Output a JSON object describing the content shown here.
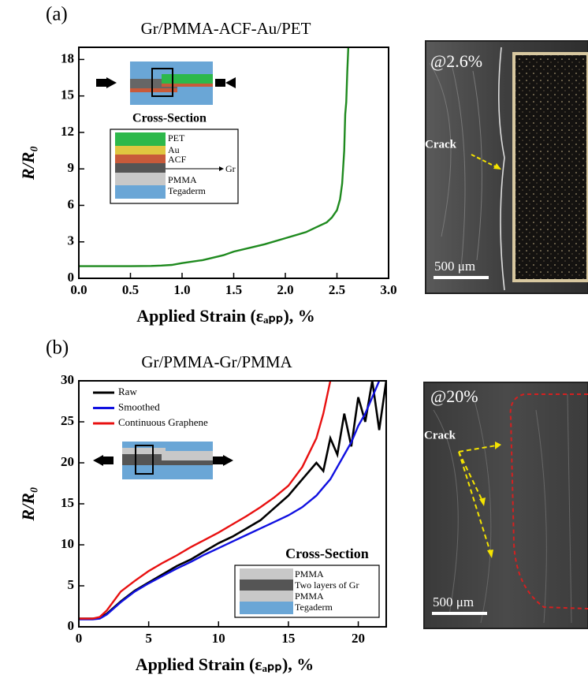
{
  "chart_data": [
    {
      "type": "line",
      "panel": "(a)",
      "title": "Gr/PMMA-ACF-Au/PET",
      "xlabel": "Applied Strain (εₐₚₚ), %",
      "ylabel": "R/R₀",
      "x": [
        0,
        0.3,
        0.5,
        0.7,
        0.8,
        0.9,
        1.0,
        1.2,
        1.4,
        1.5,
        1.7,
        1.8,
        2.0,
        2.2,
        2.3,
        2.4,
        2.45,
        2.5,
        2.53,
        2.55,
        2.57,
        2.58,
        2.59,
        2.6,
        2.61
      ],
      "series": [
        {
          "name": "Gr/PMMA-ACF-Au/PET",
          "color": "#1f8a1f",
          "values": [
            1.0,
            1.0,
            1.0,
            1.02,
            1.05,
            1.1,
            1.25,
            1.5,
            1.9,
            2.2,
            2.6,
            2.8,
            3.3,
            3.8,
            4.2,
            4.6,
            5.0,
            5.6,
            6.5,
            7.8,
            10.5,
            13.5,
            14.5,
            17.0,
            19.0
          ]
        }
      ],
      "xlim": [
        0,
        3
      ],
      "ylim": [
        0,
        19
      ],
      "xticks": [
        {
          "value": 0,
          "label": "0.0"
        },
        {
          "value": 0.5,
          "label": "0.5"
        },
        {
          "value": 1,
          "label": "1.0"
        },
        {
          "value": 1.5,
          "label": "1.5"
        },
        {
          "value": 2,
          "label": "2.0"
        },
        {
          "value": 2.5,
          "label": "2.5"
        },
        {
          "value": 3,
          "label": "3.0"
        }
      ],
      "yticks": [
        0,
        3,
        6,
        9,
        12,
        15,
        18
      ],
      "inset": {
        "heading": "Cross-Section",
        "layers": [
          "PET",
          "Au",
          "ACF",
          "PMMA",
          "Tegaderm"
        ],
        "arrow_label": "Gr"
      }
    },
    {
      "type": "line",
      "panel": "(b)",
      "title": "Gr/PMMA-Gr/PMMA",
      "xlabel": "Applied Strain (εₐₚₚ), %",
      "ylabel": "R/R₀",
      "x": [
        0,
        1,
        1.5,
        2,
        3,
        4,
        5,
        6,
        7,
        8,
        9,
        10,
        11,
        12,
        13,
        14,
        15,
        16,
        17,
        17.5,
        18,
        18.5,
        19,
        19.5,
        20,
        20.5,
        21,
        21.5,
        22
      ],
      "series": [
        {
          "name": "Raw",
          "color": "#000000",
          "values": [
            1,
            1,
            1.1,
            1.6,
            3.1,
            4.4,
            5.4,
            6.4,
            7.4,
            8.2,
            9.2,
            10.2,
            11,
            12,
            13,
            14.5,
            16,
            18,
            20,
            19,
            23,
            21,
            26,
            22,
            28,
            25,
            30,
            24,
            30
          ]
        },
        {
          "name": "Smoothed",
          "color": "#1010e0",
          "values": [
            0.9,
            0.9,
            1,
            1.5,
            3,
            4.3,
            5.3,
            6.2,
            7.1,
            7.9,
            8.8,
            9.6,
            10.4,
            11.2,
            12,
            12.8,
            13.6,
            14.6,
            16,
            17,
            18,
            19.5,
            21,
            22.5,
            24.5,
            26,
            28,
            30,
            null
          ]
        },
        {
          "name": "Continuous Graphene",
          "color": "#e81010",
          "values": [
            1,
            1,
            1.2,
            2,
            4.3,
            5.6,
            6.8,
            7.8,
            8.7,
            9.7,
            10.6,
            11.5,
            12.5,
            13.5,
            14.6,
            15.8,
            17.2,
            19.5,
            23,
            26,
            30,
            null,
            null,
            null,
            null,
            null,
            null,
            null,
            null
          ]
        }
      ],
      "xlim": [
        0,
        22
      ],
      "ylim": [
        0,
        30
      ],
      "xticks": [
        0,
        5,
        10,
        15,
        20
      ],
      "yticks": [
        0,
        5,
        10,
        15,
        20,
        25,
        30
      ],
      "legend": "top-left",
      "inset": {
        "heading": "Cross-Section",
        "layers": [
          "PMMA",
          "Two layers of Gr",
          "PMMA",
          "Tegaderm"
        ]
      }
    }
  ],
  "micrographs": [
    {
      "strain": "@2.6%",
      "annotation": "Crack",
      "scale_bar": "500 μm"
    },
    {
      "strain": "@20%",
      "annotation": "Crack",
      "scale_bar": "500 μm"
    }
  ]
}
